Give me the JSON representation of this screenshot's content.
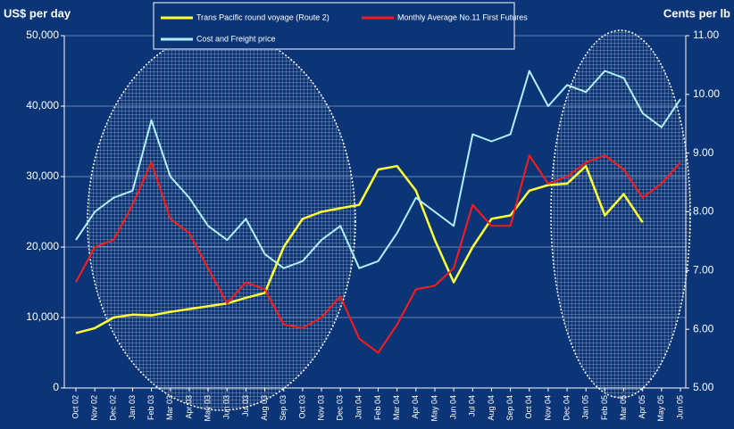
{
  "chart_data": {
    "type": "line",
    "y_label": "US$ per day",
    "y2_label": "Cents per lb",
    "categories": [
      "Oct 02",
      "Nov 02",
      "Dec 02",
      "Jan 03",
      "Feb 03",
      "Mar 03",
      "Apr 03",
      "May 03",
      "Jun 03",
      "Jul 03",
      "Aug 03",
      "Sep 03",
      "Oct 03",
      "Nov 03",
      "Dec 03",
      "Jan 04",
      "Feb 04",
      "Mar 04",
      "Apr 04",
      "May 04",
      "Jun 04",
      "Jul 04",
      "Aug 04",
      "Sep 04",
      "Oct 04",
      "Nov 04",
      "Dec 04",
      "Jan 05",
      "Feb 05",
      "Mar 05",
      "Apr 05",
      "May 05",
      "Jun 05"
    ],
    "series": [
      {
        "name": "Trans Pacific round voyage (Route 2)",
        "color": "#ffff33",
        "axis": "y",
        "values": [
          7800,
          8500,
          10000,
          10400,
          10300,
          10800,
          11200,
          11600,
          12000,
          12800,
          13500,
          20000,
          24000,
          25000,
          25500,
          26000,
          31000,
          31500,
          28000,
          21000,
          15000,
          20000,
          24000,
          24500,
          28000,
          28800,
          29000,
          31500,
          24500,
          27500,
          23500,
          null,
          null
        ]
      },
      {
        "name": "Monthly Average No.11 First Futures",
        "color": "#ff1a1a",
        "axis": "y2",
        "values": [
          6.8,
          7.4,
          7.52,
          8.12,
          8.84,
          7.88,
          7.64,
          7.04,
          6.44,
          6.8,
          6.68,
          6.08,
          6.02,
          6.2,
          6.56,
          5.84,
          5.6,
          6.08,
          6.68,
          6.74,
          7.04,
          8.12,
          7.76,
          7.76,
          8.96,
          8.48,
          8.6,
          8.84,
          8.96,
          8.72,
          8.24,
          8.48,
          8.84
        ]
      },
      {
        "name": "Cost and Freight price",
        "color": "#b3f0ff",
        "axis": "y2",
        "values": [
          7.52,
          8.0,
          8.24,
          8.36,
          9.56,
          8.6,
          8.24,
          7.76,
          7.52,
          7.88,
          7.28,
          7.04,
          7.16,
          7.52,
          7.76,
          7.04,
          7.16,
          7.64,
          8.24,
          8.0,
          7.76,
          9.32,
          9.2,
          9.32,
          10.4,
          9.8,
          10.16,
          10.04,
          10.4,
          10.28,
          9.68,
          9.44,
          9.92
        ]
      }
    ],
    "ylim": [
      0,
      50000
    ],
    "yticks": [
      0,
      {
        "value": 10000,
        "label": "10,000"
      },
      {
        "value": 20000,
        "label": "20,000"
      },
      {
        "value": 30000,
        "label": "30,000"
      },
      {
        "value": 40000,
        "label": "40,000"
      },
      {
        "value": 50000,
        "label": "50,000"
      }
    ],
    "y2lim": [
      5,
      11
    ],
    "y2ticks": [
      {
        "value": 5,
        "label": "5.00"
      },
      {
        "value": 6,
        "label": "6.00"
      },
      {
        "value": 7,
        "label": "7.00"
      },
      {
        "value": 8,
        "label": "8.00"
      },
      {
        "value": 9,
        "label": "9.00"
      },
      {
        "value": 10,
        "label": "10.00"
      },
      {
        "value": 11,
        "label": "11.00"
      }
    ],
    "grid": true
  }
}
